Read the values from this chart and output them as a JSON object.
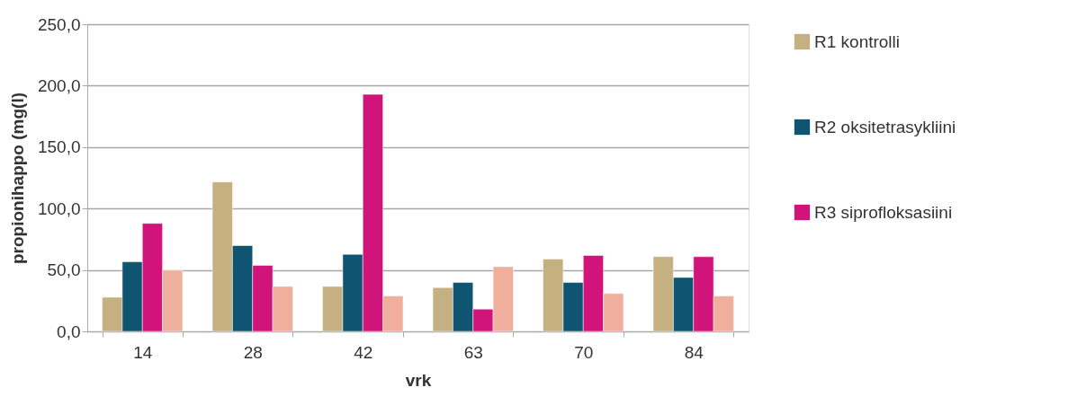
{
  "chart_data": {
    "type": "bar",
    "xlabel": "vrk",
    "ylabel": "propionihappo (mg(l)",
    "categories": [
      "14",
      "28",
      "42",
      "63",
      "70",
      "84"
    ],
    "series": [
      {
        "name": "R1 kontrolli",
        "color": "#c5b082",
        "values": [
          27.8,
          121.6,
          36.6,
          35.6,
          58.8,
          60.8
        ]
      },
      {
        "name": "R2 oksitetrasykliini",
        "color": "#0f5571",
        "values": [
          56.6,
          69.8,
          62.7,
          39.8,
          39.8,
          43.9
        ]
      },
      {
        "name": "R3 siprofloksasiini",
        "color": "#d0147a",
        "values": [
          87.9,
          53.7,
          192.9,
          18.1,
          61.8,
          60.8
        ]
      },
      {
        "color": "#f0ae9c",
        "values": [
          49.8,
          36.6,
          28.8,
          52.7,
          30.8,
          28.8
        ]
      }
    ],
    "ylim": [
      0,
      250
    ],
    "yticks": [
      {
        "value": 0,
        "label": "0,0"
      },
      {
        "value": 50,
        "label": "50,0"
      },
      {
        "value": 100,
        "label": "100,0"
      },
      {
        "value": 150,
        "label": "150,0"
      },
      {
        "value": 200,
        "label": "200,0"
      },
      {
        "value": 250,
        "label": "250,0"
      }
    ],
    "grid": "y",
    "legend": "right"
  }
}
